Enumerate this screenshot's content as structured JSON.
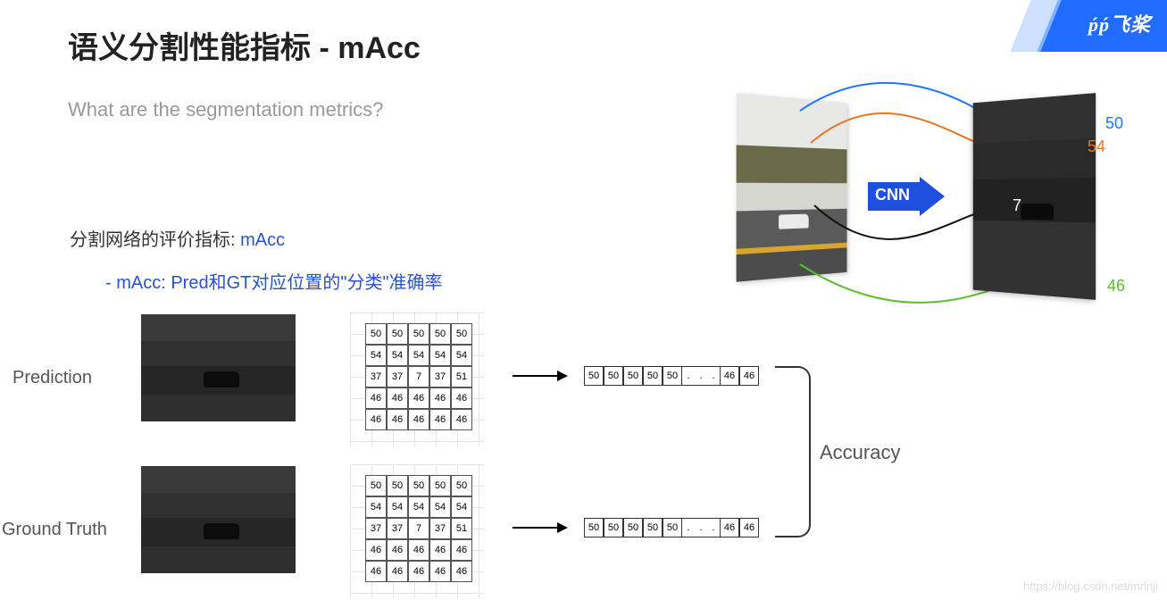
{
  "title": "语义分割性能指标 - mAcc",
  "subtitle": "What are the segmentation metrics?",
  "section": {
    "prefix": "分割网络的评价指标: ",
    "metric": "mAcc"
  },
  "bullet": {
    "dash": "-  ",
    "text": "mAcc: Pred和GT对应位置的\"分类\"准确率"
  },
  "rows": {
    "prediction": "Prediction",
    "groundtruth": "Ground Truth"
  },
  "grid_pred": {
    "cells": [
      [
        50,
        50,
        50,
        50,
        50
      ],
      [
        54,
        54,
        54,
        54,
        54
      ],
      [
        37,
        37,
        7,
        37,
        51
      ],
      [
        46,
        46,
        46,
        46,
        46
      ],
      [
        46,
        46,
        46,
        46,
        46
      ]
    ]
  },
  "grid_gt": {
    "cells": [
      [
        50,
        50,
        50,
        50,
        50
      ],
      [
        54,
        54,
        54,
        54,
        54
      ],
      [
        37,
        37,
        7,
        37,
        51
      ],
      [
        46,
        46,
        46,
        46,
        46
      ],
      [
        46,
        46,
        46,
        46,
        46
      ]
    ]
  },
  "flatten": {
    "head": [
      50,
      50,
      50,
      50,
      50
    ],
    "dots": [
      ".",
      ".",
      "."
    ],
    "tail": [
      46,
      46
    ]
  },
  "accuracy_label": "Accuracy",
  "logo": {
    "text": "飞桨",
    "prefix": "ṕṕ"
  },
  "diagram": {
    "cnn": "CNN",
    "labels": {
      "n50": "50",
      "n54": "54",
      "n7": "7",
      "n46": "46"
    },
    "colors": {
      "c50": "#2076ff",
      "c54": "#e87722",
      "c7": "#111111",
      "c46": "#5bbf2f"
    }
  },
  "watermark": "https://blog.csdn.net/mrlnji",
  "style": {
    "grid_border": "#555555",
    "flat_border": "#333333",
    "title_color": "#222222",
    "sub_color": "#999999",
    "accent": "#2853cc"
  }
}
